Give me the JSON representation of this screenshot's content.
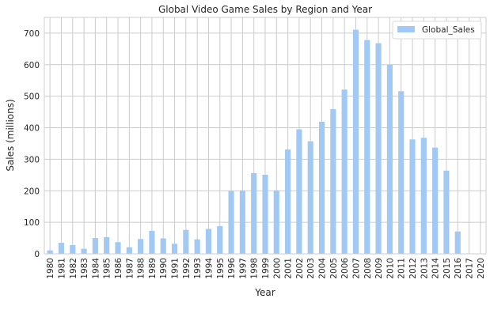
{
  "chart_data": {
    "type": "bar",
    "title": "Global Video Game Sales by Region and Year",
    "xlabel": "Year",
    "ylabel": "Sales (millions)",
    "categories": [
      "1980",
      "1981",
      "1982",
      "1983",
      "1984",
      "1985",
      "1986",
      "1987",
      "1988",
      "1989",
      "1990",
      "1991",
      "1992",
      "1993",
      "1994",
      "1995",
      "1996",
      "1997",
      "1998",
      "1999",
      "2000",
      "2001",
      "2002",
      "2003",
      "2004",
      "2005",
      "2006",
      "2007",
      "2008",
      "2009",
      "2010",
      "2011",
      "2012",
      "2013",
      "2014",
      "2015",
      "2016",
      "2017",
      "2020"
    ],
    "series": [
      {
        "name": "Global_Sales",
        "values": [
          11,
          35,
          28,
          16,
          50,
          53,
          37,
          21,
          47,
          73,
          49,
          32,
          76,
          46,
          79,
          88,
          199,
          201,
          256,
          251,
          201,
          331,
          395,
          357,
          419,
          459,
          521,
          711,
          678,
          668,
          600,
          516,
          363,
          368,
          337,
          264,
          71,
          0.05,
          0.3
        ]
      }
    ],
    "ylim": [
      0,
      750
    ],
    "yticks": [
      0,
      100,
      200,
      300,
      400,
      500,
      600,
      700
    ],
    "grid": true,
    "legend_position": "top-right",
    "colors": {
      "bar": "#a1c9f4",
      "grid": "#cccccc",
      "text": "#262626"
    }
  }
}
